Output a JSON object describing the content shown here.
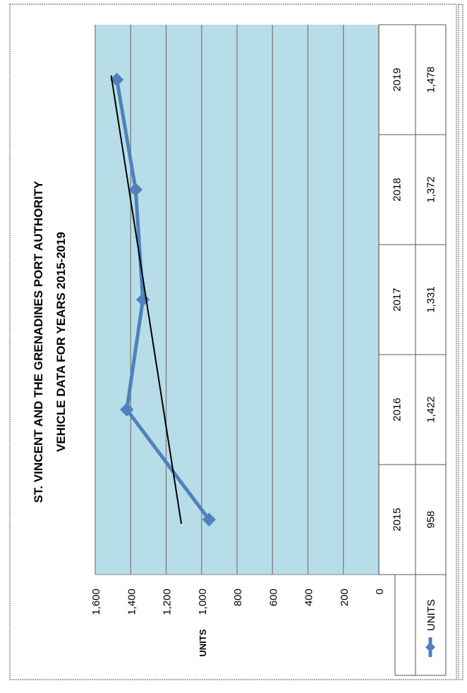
{
  "chart_data": {
    "type": "line",
    "orientation": "rotated 90 degrees clockwise on the page",
    "title": [
      "ST. VINCENT AND THE GRENADINES PORT AUTHORITY",
      "VEHICLE DATA  FOR YEARS 2015-2019"
    ],
    "categories": [
      "2015",
      "2016",
      "2017",
      "2018",
      "2019"
    ],
    "series": [
      {
        "name": "UNITS",
        "values": [
          958,
          1422,
          1331,
          1372,
          1478
        ],
        "value_labels": [
          "958",
          "1,422",
          "1,331",
          "1,372",
          "1,478"
        ],
        "color": "#4f81bd",
        "marker": "diamond"
      }
    ],
    "trendline": {
      "type": "linear",
      "color": "#000000"
    },
    "ylim": [
      0,
      1600
    ],
    "yticks": [
      0,
      200,
      400,
      600,
      800,
      1000,
      1200,
      1400,
      1600
    ],
    "ytick_labels": [
      "0",
      "200",
      "400",
      "600",
      "800",
      "1,000",
      "1,200",
      "1,400",
      "1,600"
    ],
    "y_axis_label": "UNITS",
    "grid": true,
    "plot_background": "#b7dde8",
    "data_table": true,
    "legend": "left of data table"
  }
}
